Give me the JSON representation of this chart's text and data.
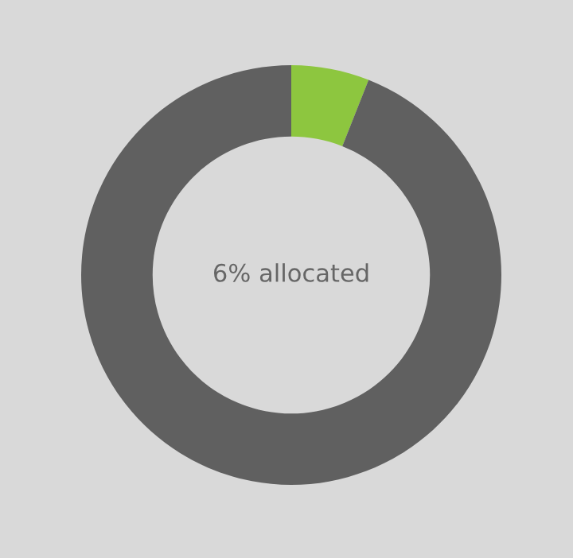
{
  "chart_data": {
    "type": "donut",
    "categories": [
      null,
      null
    ],
    "values": [
      6,
      94
    ],
    "colors": [
      "#8dc63f",
      "#606060"
    ],
    "annotations": [
      "6% allocated"
    ]
  }
}
